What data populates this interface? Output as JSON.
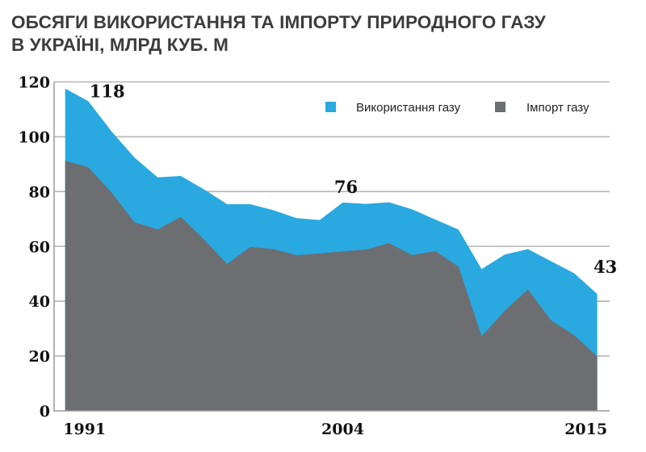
{
  "title_line1": "ОБСЯГИ ВИКОРИСТАННЯ ТА ІМПОРТУ ПРИРОДНОГО ГАЗУ",
  "title_line2": "В УКРАЇНІ, МЛРД КУБ. М",
  "chart_data": {
    "type": "area",
    "title": "ОБСЯГИ ВИКОРИСТАННЯ ТА ІМПОРТУ ПРИРОДНОГО ГАЗУ В УКРАЇНІ, МЛРД КУБ. М",
    "xlabel": "",
    "ylabel": "",
    "ylim": [
      0,
      120
    ],
    "yticks": [
      "0",
      "20",
      "40",
      "60",
      "80",
      "100",
      "120"
    ],
    "ytick_values": [
      0,
      20,
      40,
      60,
      80,
      100,
      120
    ],
    "xticks": [
      {
        "index": 0,
        "label": "1991"
      },
      {
        "index": 12,
        "label": "2004"
      },
      {
        "index": 23,
        "label": "2015"
      }
    ],
    "grid": true,
    "legend_position": "top-right",
    "series": [
      {
        "name": "Використання газу",
        "color": "#29a9e0",
        "values": [
          117.6,
          113,
          102,
          92.4,
          85.2,
          85.7,
          80.8,
          75.4,
          75.4,
          73.2,
          70.3,
          69.6,
          76,
          75.5,
          76.1,
          73.5,
          69.8,
          66.1,
          51.7,
          57,
          59,
          54.6,
          50.2,
          42.6
        ]
      },
      {
        "name": "Імпорт газу",
        "color": "#6d6e71",
        "values": [
          91.2,
          88.9,
          79.7,
          68.8,
          66.2,
          70.8,
          62.5,
          53.6,
          59.8,
          59,
          56.8,
          57.4,
          58.2,
          58.8,
          61.2,
          56.8,
          58.3,
          52.6,
          27.2,
          36.5,
          44.3,
          33,
          27.6,
          19.8
        ]
      }
    ],
    "annotations": [
      {
        "index": 0,
        "value": 118,
        "text": "118"
      },
      {
        "index": 12,
        "value": 76,
        "text": "76"
      },
      {
        "index": 23,
        "value": 43,
        "text": "43"
      }
    ]
  }
}
